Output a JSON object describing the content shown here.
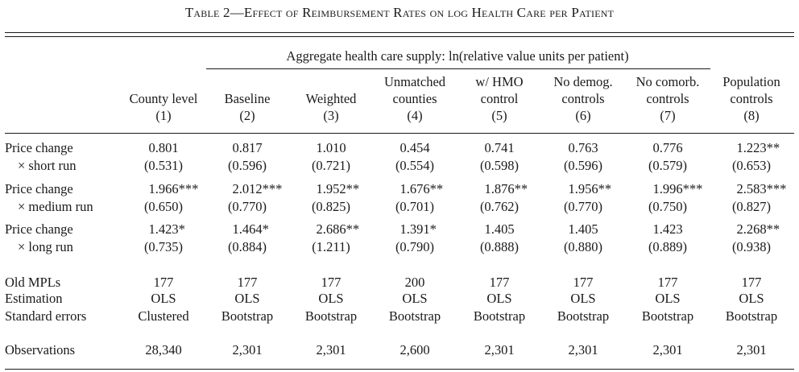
{
  "title": "Table 2—Effect of Reimbursement Rates on log Health Care per Patient",
  "span_header": "Aggregate health care supply: ln(relative value units per patient)",
  "columns": [
    {
      "lines": [
        "",
        "County level",
        "(1)"
      ]
    },
    {
      "lines": [
        "",
        "Baseline",
        "(2)"
      ]
    },
    {
      "lines": [
        "",
        "Weighted",
        "(3)"
      ]
    },
    {
      "lines": [
        "Unmatched",
        "counties",
        "(4)"
      ]
    },
    {
      "lines": [
        "w/ HMO",
        "control",
        "(5)"
      ]
    },
    {
      "lines": [
        "No demog.",
        "controls",
        "(6)"
      ]
    },
    {
      "lines": [
        "No comorb.",
        "controls",
        "(7)"
      ]
    },
    {
      "lines": [
        "Population",
        "controls",
        "(8)"
      ]
    }
  ],
  "coef_rows": [
    {
      "label1": "Price change",
      "label2": "× short run",
      "coefs": [
        {
          "v": "0.801",
          "s": ""
        },
        {
          "v": "0.817",
          "s": ""
        },
        {
          "v": "1.010",
          "s": ""
        },
        {
          "v": "0.454",
          "s": ""
        },
        {
          "v": "0.741",
          "s": ""
        },
        {
          "v": "0.763",
          "s": ""
        },
        {
          "v": "0.776",
          "s": ""
        },
        {
          "v": "1.223",
          "s": "**"
        }
      ],
      "ses": [
        "(0.531)",
        "(0.596)",
        "(0.721)",
        "(0.554)",
        "(0.598)",
        "(0.596)",
        "(0.579)",
        "(0.653)"
      ]
    },
    {
      "label1": "Price change",
      "label2": "× medium run",
      "coefs": [
        {
          "v": "1.966",
          "s": "***"
        },
        {
          "v": "2.012",
          "s": "***"
        },
        {
          "v": "1.952",
          "s": "**"
        },
        {
          "v": "1.676",
          "s": "**"
        },
        {
          "v": "1.876",
          "s": "**"
        },
        {
          "v": "1.956",
          "s": "**"
        },
        {
          "v": "1.996",
          "s": "***"
        },
        {
          "v": "2.583",
          "s": "***"
        }
      ],
      "ses": [
        "(0.650)",
        "(0.770)",
        "(0.825)",
        "(0.701)",
        "(0.762)",
        "(0.770)",
        "(0.750)",
        "(0.827)"
      ]
    },
    {
      "label1": "Price change",
      "label2": "× long run",
      "coefs": [
        {
          "v": "1.423",
          "s": "*"
        },
        {
          "v": "1.464",
          "s": "*"
        },
        {
          "v": "2.686",
          "s": "**"
        },
        {
          "v": "1.391",
          "s": "*"
        },
        {
          "v": "1.405",
          "s": ""
        },
        {
          "v": "1.405",
          "s": ""
        },
        {
          "v": "1.423",
          "s": ""
        },
        {
          "v": "2.268",
          "s": "**"
        }
      ],
      "ses": [
        "(0.735)",
        "(0.884)",
        "(1.211)",
        "(0.790)",
        "(0.888)",
        "(0.880)",
        "(0.889)",
        "(0.938)"
      ]
    }
  ],
  "info_rows": [
    {
      "label": "Old MPLs",
      "values": [
        "177",
        "177",
        "177",
        "200",
        "177",
        "177",
        "177",
        "177"
      ]
    },
    {
      "label": "Estimation",
      "values": [
        "OLS",
        "OLS",
        "OLS",
        "OLS",
        "OLS",
        "OLS",
        "OLS",
        "OLS"
      ]
    },
    {
      "label": "Standard errors",
      "values": [
        "Clustered",
        "Bootstrap",
        "Bootstrap",
        "Bootstrap",
        "Bootstrap",
        "Bootstrap",
        "Bootstrap",
        "Bootstrap"
      ]
    }
  ],
  "obs_row": {
    "label": "Observations",
    "values": [
      "28,340",
      "2,301",
      "2,301",
      "2,600",
      "2,301",
      "2,301",
      "2,301",
      "2,301"
    ]
  }
}
